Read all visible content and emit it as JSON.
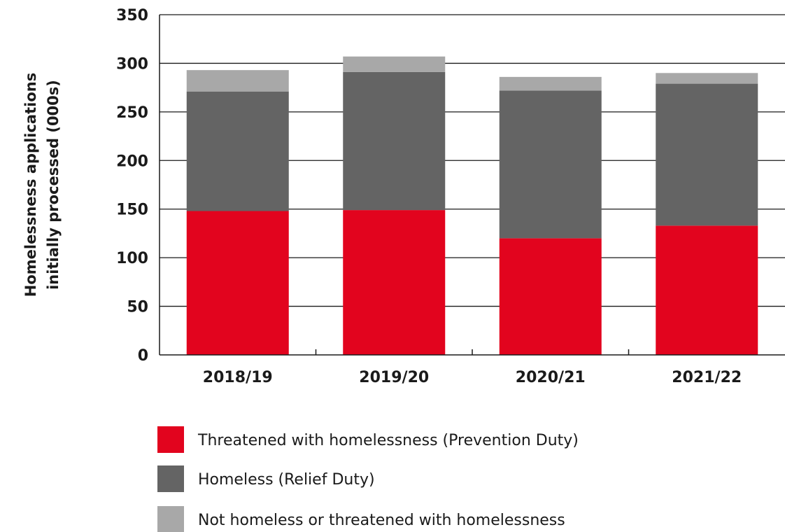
{
  "chart_data": {
    "type": "bar",
    "stacked": true,
    "categories": [
      "2018/19",
      "2019/20",
      "2020/21",
      "2021/22"
    ],
    "series": [
      {
        "name": "Threatened with homelessness (Prevention Duty)",
        "color": "#e2041e",
        "values": [
          148,
          149,
          120,
          133
        ]
      },
      {
        "name": "Homeless (Relief Duty)",
        "color": "#646464",
        "values": [
          123,
          142,
          152,
          146
        ]
      },
      {
        "name": "Not homeless or threatened with homelessness",
        "color": "#a8a8a8",
        "values": [
          22,
          16,
          14,
          11
        ]
      }
    ],
    "ylabel_lines": [
      "Homelessness applications",
      "initially processed (000s)"
    ],
    "ylim": [
      0,
      350
    ],
    "yticks": [
      0,
      50,
      100,
      150,
      200,
      250,
      300,
      350
    ],
    "grid": true,
    "legend_position": "bottom"
  }
}
